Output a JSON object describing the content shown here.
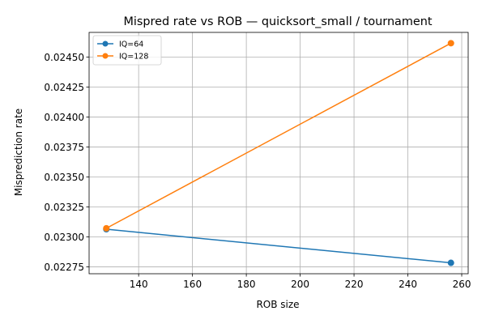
{
  "chart_data": {
    "type": "line",
    "title": "Mispred rate vs ROB — quicksort_small / tournament",
    "xlabel": "ROB size",
    "ylabel": "Misprediction rate",
    "x": [
      128,
      256
    ],
    "series": [
      {
        "name": "IQ=64",
        "values": [
          0.023064,
          0.022784
        ],
        "color": "#1f77b4"
      },
      {
        "name": "IQ=128",
        "values": [
          0.023072,
          0.024615
        ],
        "color": "#ff7f0e"
      }
    ],
    "xlim": [
      121.6,
      262.4
    ],
    "ylim": [
      0.022693,
      0.024705
    ],
    "x_ticks": [
      140,
      160,
      180,
      200,
      220,
      240,
      260
    ],
    "y_ticks": [
      0.02275,
      0.023,
      0.02325,
      0.0235,
      0.02375,
      0.024,
      0.02425,
      0.0245
    ],
    "x_tick_labels": [
      "140",
      "160",
      "180",
      "200",
      "220",
      "240",
      "260"
    ],
    "y_tick_labels": [
      "0.02275",
      "0.02300",
      "0.02325",
      "0.02350",
      "0.02375",
      "0.02400",
      "0.02425",
      "0.02450"
    ],
    "grid": true,
    "legend_position": "top-left",
    "marker": "circle"
  }
}
